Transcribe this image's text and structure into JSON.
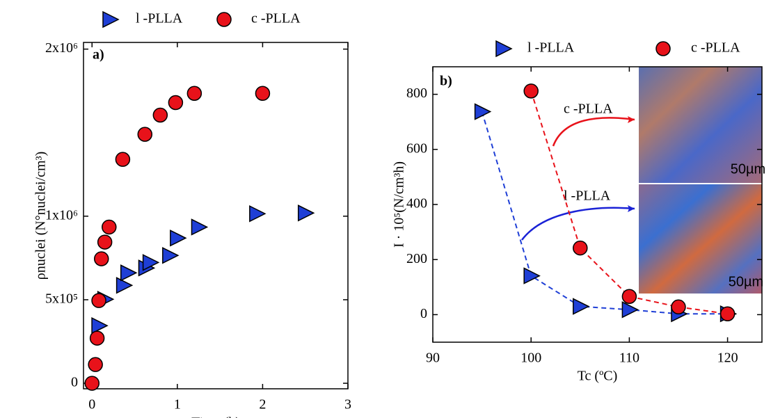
{
  "chart_data": [
    {
      "type": "scatter",
      "panel_label": "a)",
      "x_label": "Time (h)",
      "y_label": "ρnuclei (N°nuclei/cm³)",
      "xlim": [
        -0.1,
        3
      ],
      "xticks": [
        0,
        1,
        2,
        3
      ],
      "ylim": [
        -33000,
        2040000
      ],
      "yticks": [
        0,
        {
          "value": 500000,
          "label": "5x10⁵"
        },
        {
          "value": 1000000,
          "label": "1x10⁶"
        },
        {
          "value": 2000000,
          "label": "2x10⁶"
        }
      ],
      "series": [
        {
          "name": "l -PLLA",
          "marker": "triangle-right",
          "color": "#1f3fd6",
          "x": [
            0.08,
            0.15,
            0.37,
            0.42,
            0.63,
            0.68,
            0.91,
            1.0,
            1.25,
            1.93,
            2.5
          ],
          "values": [
            345000,
            503000,
            586000,
            661000,
            690000,
            723000,
            765000,
            869000,
            935000,
            1015000,
            1019000
          ]
        },
        {
          "name": "c -PLLA",
          "marker": "circle",
          "color": "#e8121a",
          "x": [
            0.0,
            0.04,
            0.06,
            0.08,
            0.11,
            0.15,
            0.2,
            0.36,
            0.62,
            0.8,
            0.98,
            1.2,
            2.0
          ],
          "values": [
            0,
            112000,
            270000,
            495000,
            745000,
            845000,
            935000,
            1340000,
            1490000,
            1605000,
            1680000,
            1735000,
            1735000
          ]
        }
      ]
    },
    {
      "type": "scatter",
      "connect": "dashed",
      "panel_label": "b)",
      "x_label": "Tc (ºC)",
      "y_label": "I · 10⁵(N/cm³h)",
      "xlim": [
        90,
        123.5
      ],
      "xticks": [
        90,
        100,
        110,
        120
      ],
      "ylim": [
        -100,
        900
      ],
      "yticks": [
        0,
        200,
        400,
        600,
        800
      ],
      "annotations": [
        "c -PLLA",
        "l -PLLA",
        "50µm",
        "50µm"
      ],
      "series": [
        {
          "name": "l -PLLA",
          "marker": "triangle-right",
          "color": "#1f3fd6",
          "x": [
            95,
            100,
            105,
            110,
            115,
            120
          ],
          "values": [
            737,
            141,
            30,
            18,
            3,
            3
          ]
        },
        {
          "name": "c -PLLA",
          "marker": "circle",
          "color": "#e8121a",
          "x": [
            100,
            105,
            110,
            115,
            120
          ],
          "values": [
            812,
            242,
            66,
            28,
            3
          ]
        }
      ]
    }
  ]
}
